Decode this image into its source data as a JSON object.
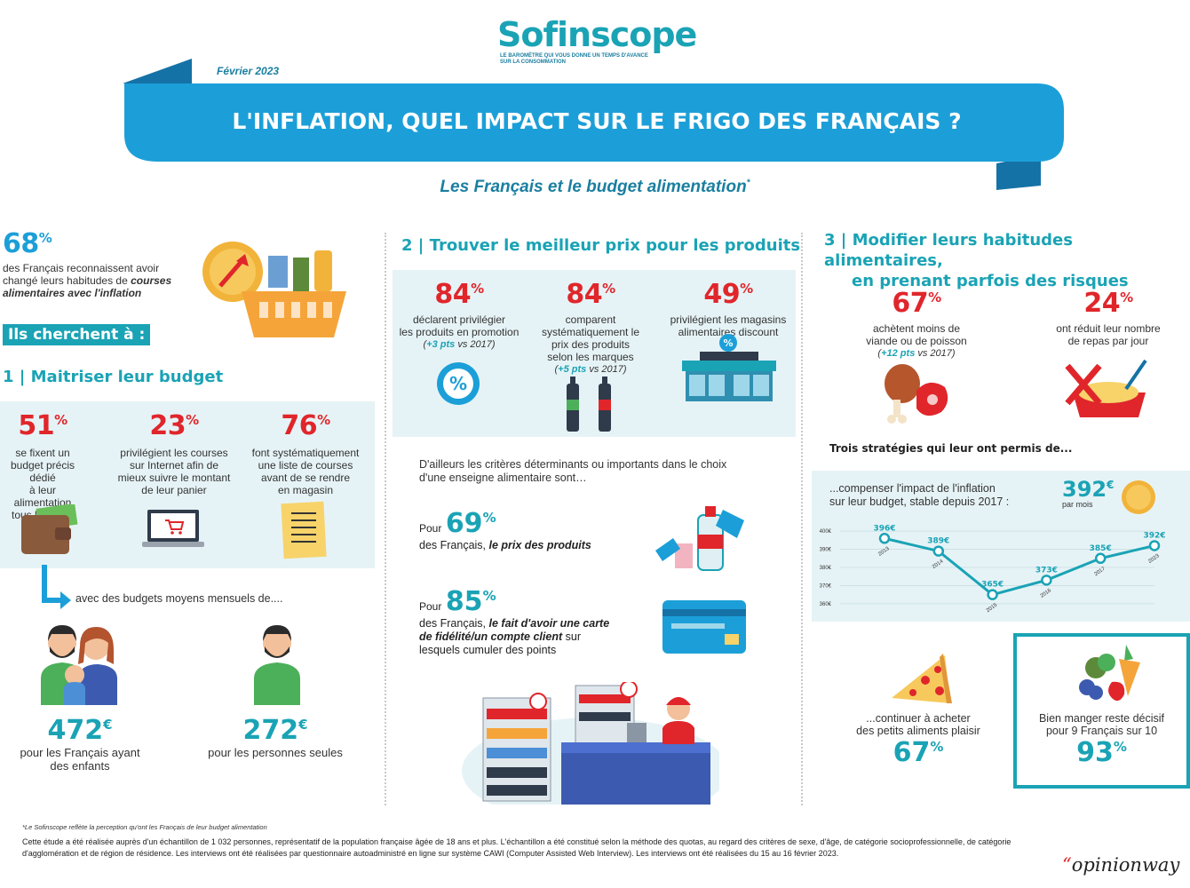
{
  "brand": {
    "logo": "Sofinscope",
    "tagline_1": "LE BAROMÈTRE QUI VOUS DONNE UN TEMPS D'AVANCE",
    "tagline_2": "SUR LA CONSOMMATION"
  },
  "header": {
    "date": "Février 2023",
    "title": "L'INFLATION, QUEL IMPACT SUR LE FRIGO DES FRANÇAIS ?",
    "subtitle": "Les Français et le budget alimentation",
    "subtitle_mark": "*"
  },
  "col1": {
    "intro_value": "68",
    "intro_unit": "%",
    "intro_text_a": "des Français reconnaissent avoir",
    "intro_text_b": "changé leurs habitudes de",
    "intro_text_bold": "courses alimentaires avec l'inflation",
    "cherchent": "Ils cherchent à :",
    "section_num": "1",
    "section_title": "Maitriser leur budget",
    "stats": [
      {
        "value": "51",
        "unit": "%",
        "lines": [
          "se fixent un",
          "budget précis dédié",
          "à leur alimentation",
          "tous les mois"
        ]
      },
      {
        "value": "23",
        "unit": "%",
        "lines": [
          "privilégient les courses",
          "sur Internet afin de",
          "mieux suivre le montant",
          "de leur panier"
        ]
      },
      {
        "value": "76",
        "unit": "%",
        "lines": [
          "font systématiquement",
          "une liste de courses",
          "avant de se rendre",
          "en magasin"
        ]
      }
    ],
    "budgets_intro": "avec des budgets moyens mensuels de....",
    "budget_family_value": "472",
    "budget_family_unit": "€",
    "budget_family_label_1": "pour les Français ayant",
    "budget_family_label_2": "des enfants",
    "budget_single_value": "272",
    "budget_single_unit": "€",
    "budget_single_label": "pour les personnes seules"
  },
  "col2": {
    "section_num": "2",
    "section_title": "Trouver le meilleur prix pour les produits",
    "stats": [
      {
        "value": "84",
        "unit": "%",
        "lines": [
          "déclarent privilégier",
          "les produits en promotion"
        ],
        "pts": "+3 pts",
        "pts_suffix": " vs 2017)"
      },
      {
        "value": "84",
        "unit": "%",
        "lines": [
          "comparent",
          "systématiquement le",
          "prix des produits",
          "selon les marques"
        ],
        "pts": "+5 pts",
        "pts_suffix": " vs 2017)"
      },
      {
        "value": "49",
        "unit": "%",
        "lines": [
          "privilégient les magasins",
          "alimentaires discount"
        ]
      }
    ],
    "criteria_1": "D'ailleurs les critères déterminants ou importants dans le choix",
    "criteria_2": "d'une enseigne alimentaire sont…",
    "pour": "Pour",
    "c1_value": "69",
    "c1_unit": "%",
    "c1_text": "des Français,",
    "c1_bold": "le prix des produits",
    "c2_value": "85",
    "c2_unit": "%",
    "c2_text": "des Français,",
    "c2_bold_1": "le fait d'avoir une carte",
    "c2_bold_2": "de fidélité/un compte client",
    "c2_after": "sur",
    "c2_line3": "lesquels cumuler des points"
  },
  "col3": {
    "section_num": "3",
    "section_title_1": "Modifier leurs habitudes alimentaires,",
    "section_title_2": "en prenant parfois des risques",
    "s1_value": "67",
    "s1_unit": "%",
    "s1_lines": [
      "achètent moins de",
      "viande ou de poisson"
    ],
    "s1_pts": "+12 pts",
    "s1_pts_suffix": " vs 2017)",
    "s2_value": "24",
    "s2_unit": "%",
    "s2_lines": [
      "ont réduit leur nombre",
      "de repas par jour"
    ],
    "strategies": "Trois stratégies qui leur ont permis de...",
    "chart_text_1": "...compenser l'impact de l'inflation",
    "chart_text_2": "sur leur budget, stable depuis 2017 :",
    "chart_value": "392",
    "chart_unit": "€",
    "chart_per": "par mois",
    "pleasure_1": "...continuer à acheter",
    "pleasure_2": "des petits aliments plaisir",
    "pleasure_value": "67",
    "pleasure_unit": "%",
    "eat_1": "Bien manger reste décisif",
    "eat_2": "pour 9 Français sur 10",
    "eat_value": "93",
    "eat_unit": "%"
  },
  "chart_data": {
    "type": "line",
    "x": [
      "2013",
      "2014",
      "2015",
      "2016",
      "2017",
      "2023"
    ],
    "values": [
      396,
      389,
      365,
      373,
      385,
      392
    ],
    "labels": [
      "396€",
      "389€",
      "365€",
      "373€",
      "385€",
      "392€"
    ],
    "y_ticks": [
      "400€",
      "390€",
      "380€",
      "370€",
      "360€"
    ],
    "ylim": [
      358,
      402
    ],
    "grid": true,
    "color": "#1aa3b5"
  },
  "footer": {
    "note": "*Le Sofinscope reflète la perception qu'ont les Français de leur  budget alimentation",
    "study_1": "Cette étude a été réalisée auprès d'un échantillon de 1 032 personnes, représentatif de la population française âgée de 18 ans et plus. L'échantillon a été constitué selon la méthode des quotas, au regard des critères de sexe, d'âge, de catégorie socioprofessionnelle, de catégorie",
    "study_2": "d'agglomération et de région de résidence. Les interviews ont été réalisées par questionnaire autoadministré en ligne sur système CAWI (Computer Assisted Web Interview).  Les interviews ont été réalisées du 15 au 16 février 2023.",
    "opinionway": "opinionway"
  }
}
